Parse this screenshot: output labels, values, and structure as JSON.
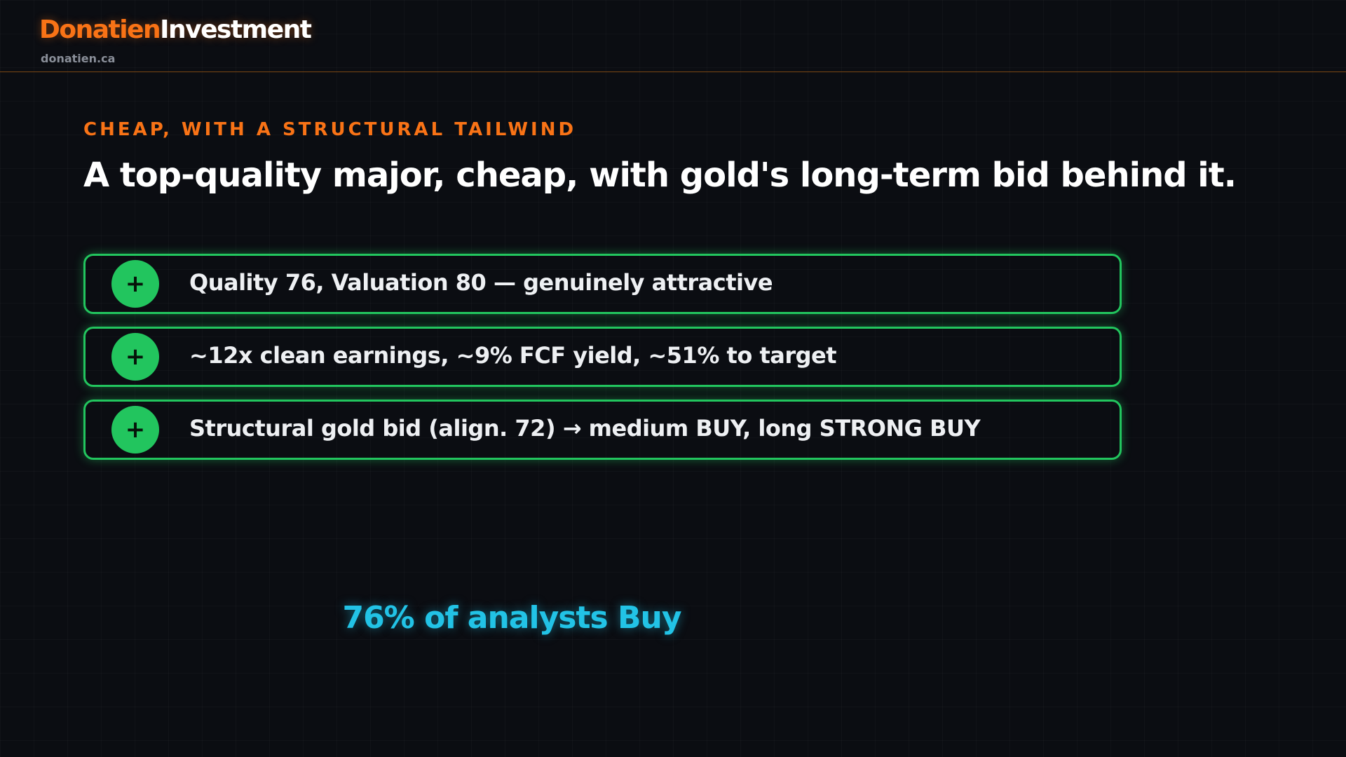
{
  "header": {
    "brand_primary": "Donatien",
    "brand_secondary": "Investment",
    "domain": "donatien.ca"
  },
  "kicker": "CHEAP, WITH A STRUCTURAL TAILWIND",
  "title": "A top-quality major, cheap, with gold's long-term bid behind it.",
  "items": [
    {
      "icon": "+",
      "text": "Quality 76, Valuation 80 — genuinely attractive"
    },
    {
      "icon": "+",
      "text": "~12x clean earnings, ~9% FCF yield, ~51% to target"
    },
    {
      "icon": "+",
      "text": "Structural gold bid (align. 72) → medium BUY, long STRONG BUY"
    }
  ],
  "stat": "76% of analysts Buy"
}
